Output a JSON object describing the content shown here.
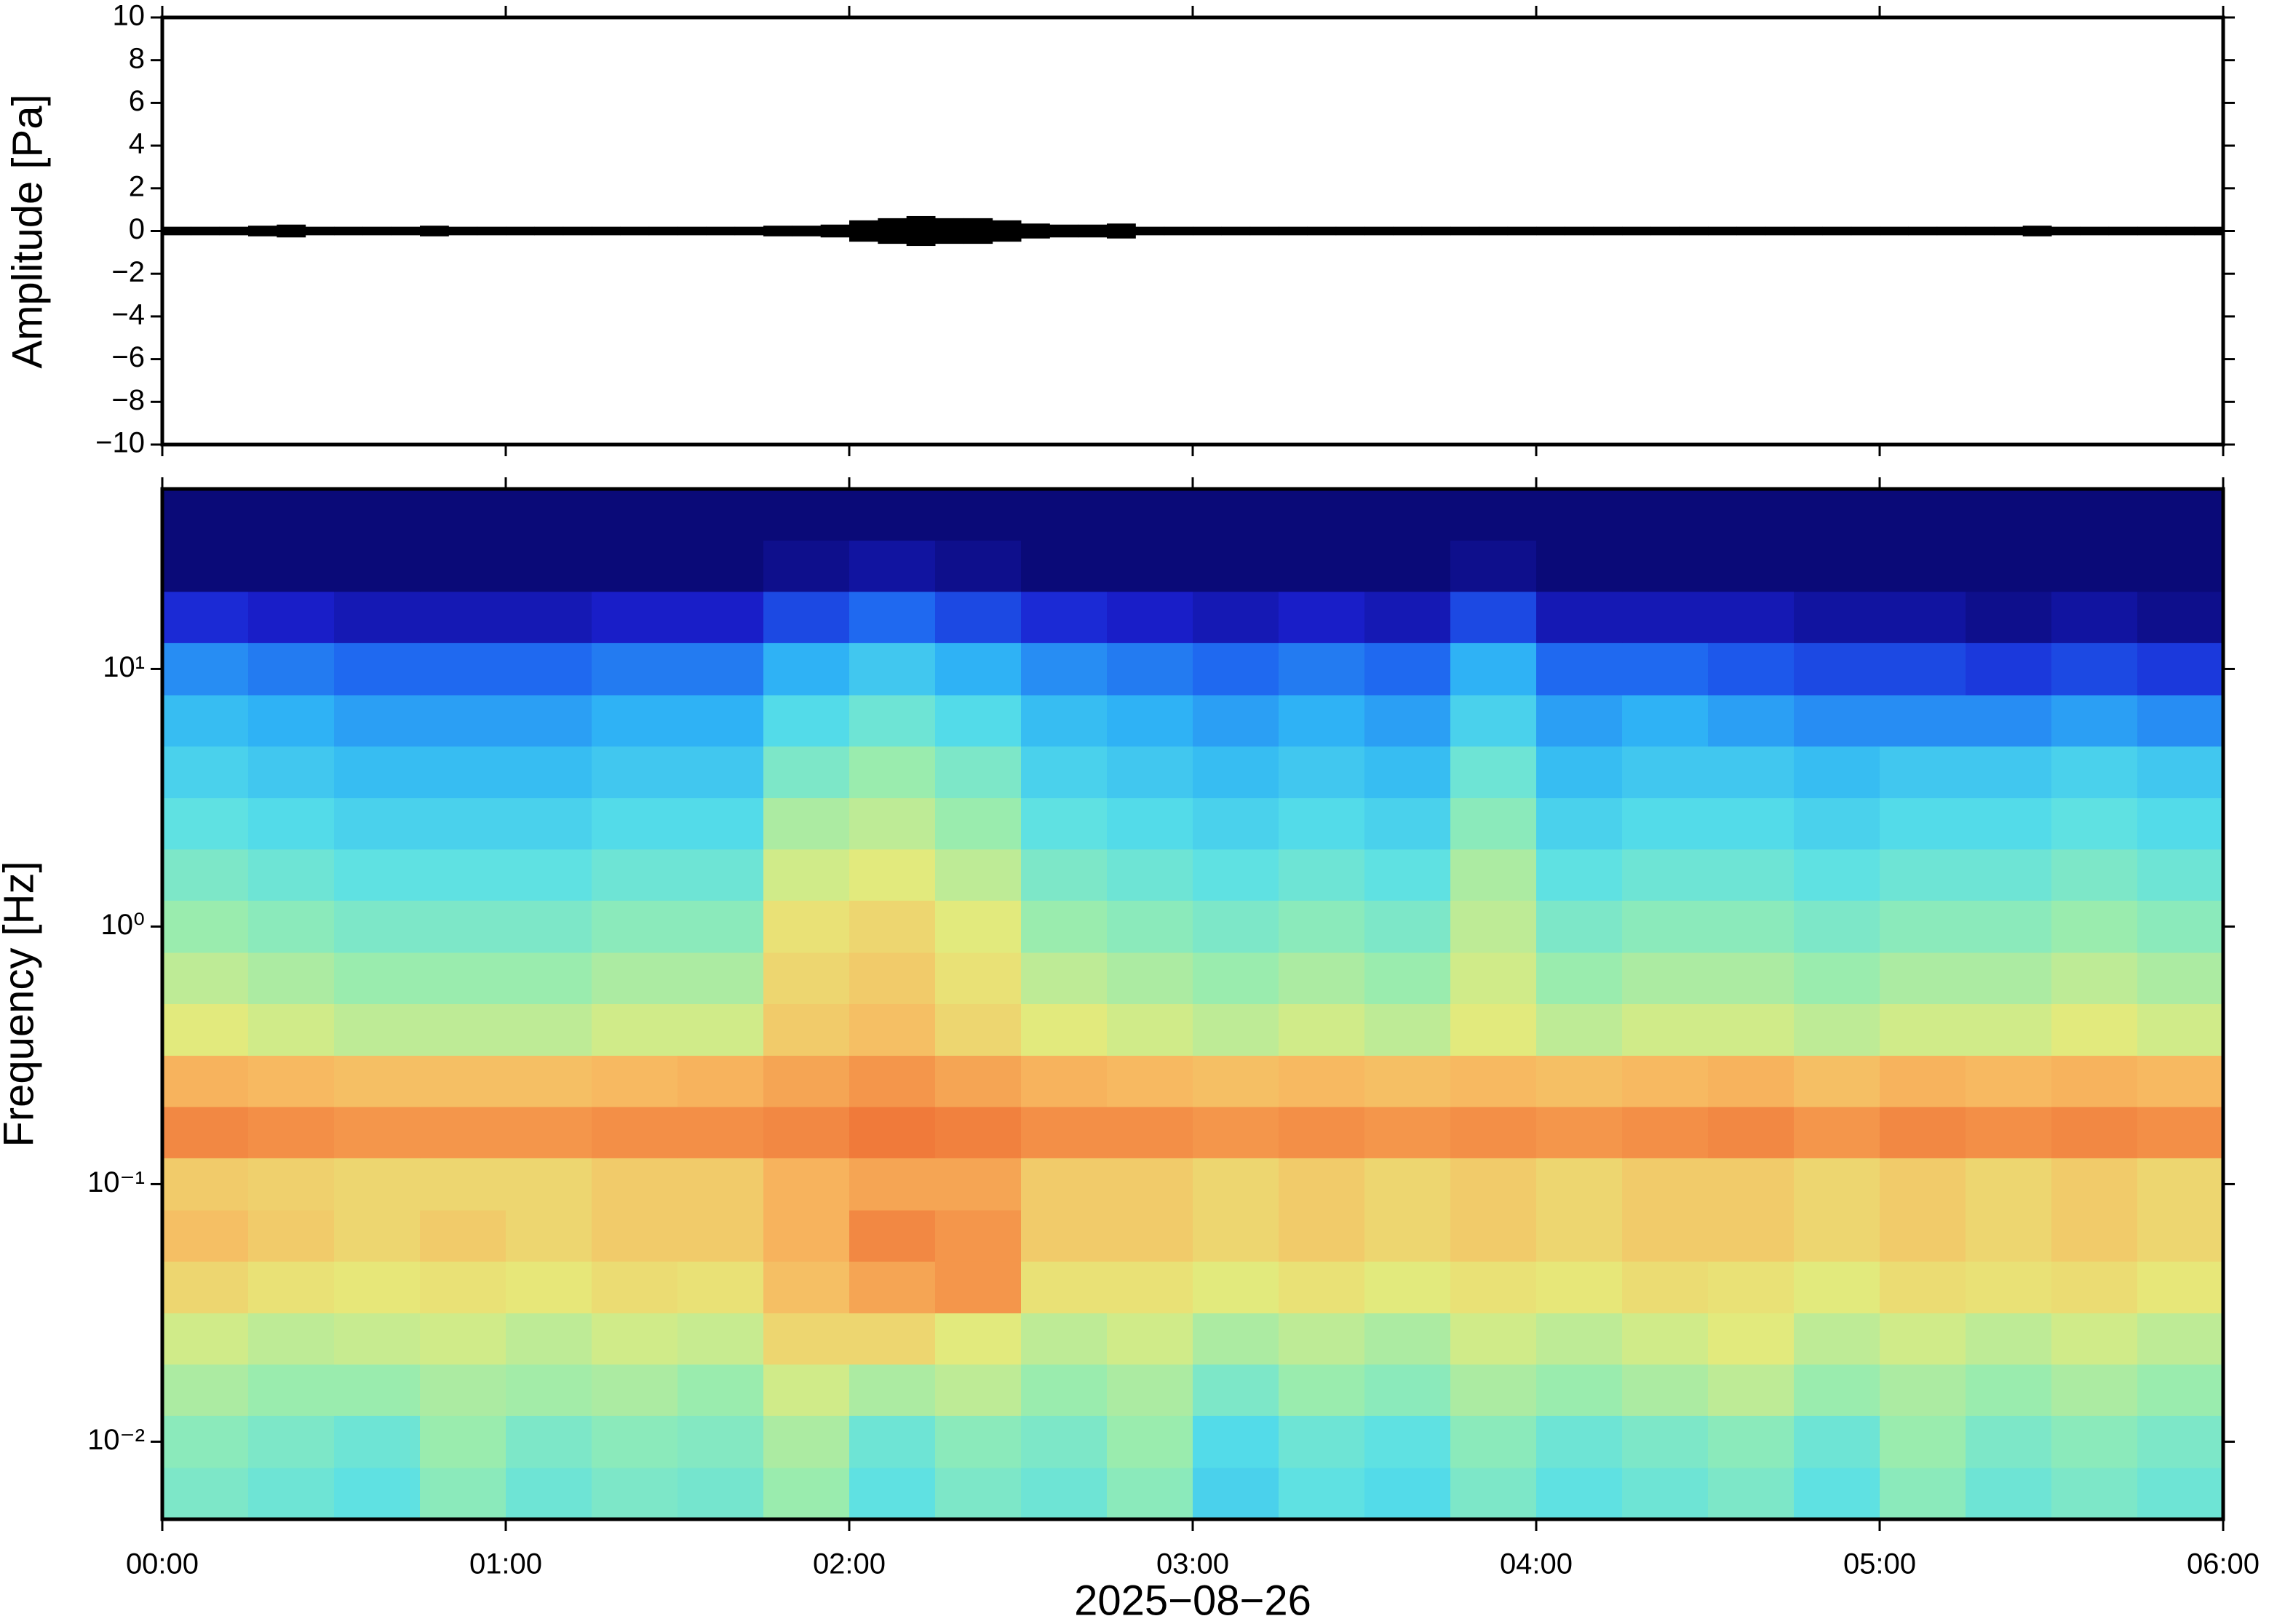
{
  "chart_data": [
    {
      "type": "envelope",
      "ylabel": "Amplitude [Pa]",
      "color": "#000000",
      "xlim": [
        0,
        360
      ],
      "ylim": [
        -10,
        10
      ],
      "yticks": [
        {
          "value": -10,
          "label": "−10"
        },
        {
          "value": -8,
          "label": "−8"
        },
        {
          "value": -6,
          "label": "−6"
        },
        {
          "value": -4,
          "label": "−4"
        },
        {
          "value": -2,
          "label": "−2"
        },
        0,
        2,
        4,
        6,
        8,
        10
      ],
      "x": [
        2.5,
        7.5,
        12.5,
        17.5,
        22.5,
        27.5,
        32.5,
        37.5,
        42.5,
        47.5,
        52.5,
        57.5,
        62.5,
        67.5,
        72.5,
        77.5,
        82.5,
        87.5,
        92.5,
        97.5,
        102.5,
        107.5,
        112.5,
        117.5,
        122.5,
        127.5,
        132.5,
        137.5,
        142.5,
        147.5,
        152.5,
        157.5,
        162.5,
        167.5,
        172.5,
        177.5,
        182.5,
        187.5,
        192.5,
        197.5,
        202.5,
        207.5,
        212.5,
        217.5,
        222.5,
        227.5,
        232.5,
        237.5,
        242.5,
        247.5,
        252.5,
        257.5,
        262.5,
        267.5,
        272.5,
        277.5,
        282.5,
        287.5,
        292.5,
        297.5,
        302.5,
        307.5,
        312.5,
        317.5,
        322.5,
        327.5,
        332.5,
        337.5,
        342.5,
        347.5,
        352.5,
        357.5
      ],
      "values": [
        0.2,
        0.2,
        0.2,
        0.25,
        0.3,
        0.2,
        0.2,
        0.2,
        0.2,
        0.25,
        0.2,
        0.2,
        0.2,
        0.2,
        0.2,
        0.2,
        0.2,
        0.2,
        0.2,
        0.2,
        0.2,
        0.25,
        0.25,
        0.3,
        0.5,
        0.6,
        0.7,
        0.6,
        0.6,
        0.5,
        0.35,
        0.3,
        0.3,
        0.35,
        0.2,
        0.2,
        0.2,
        0.2,
        0.2,
        0.2,
        0.2,
        0.2,
        0.2,
        0.2,
        0.2,
        0.2,
        0.2,
        0.2,
        0.2,
        0.2,
        0.2,
        0.2,
        0.2,
        0.2,
        0.2,
        0.2,
        0.2,
        0.2,
        0.2,
        0.2,
        0.2,
        0.2,
        0.2,
        0.2,
        0.2,
        0.25,
        0.2,
        0.2,
        0.2,
        0.2,
        0.2,
        0.2
      ]
    },
    {
      "type": "heatmap",
      "ylabel": "Frequency [Hz]",
      "xlabel": "2025−08−26",
      "log_y": true,
      "colormap": [
        "#0a0a78",
        "#1a20d0",
        "#1e64f0",
        "#2fb4f5",
        "#58e0e8",
        "#98ecb0",
        "#e6ea7a",
        "#f8b860",
        "#f07a3a"
      ],
      "xlim": [
        0,
        360
      ],
      "ylim": [
        0.005,
        50
      ],
      "xticks": [
        {
          "value": 0,
          "label": "00:00"
        },
        {
          "value": 60,
          "label": "01:00"
        },
        {
          "value": 120,
          "label": "02:00"
        },
        {
          "value": 180,
          "label": "03:00"
        },
        {
          "value": 240,
          "label": "04:00"
        },
        {
          "value": 300,
          "label": "05:00"
        },
        {
          "value": 360,
          "label": "06:00"
        }
      ],
      "yticks": [
        {
          "value": 0.01,
          "label": "10⁻²"
        },
        {
          "value": 0.1,
          "label": "10⁻¹"
        },
        {
          "value": 1,
          "label": "10⁰"
        },
        {
          "value": 10,
          "label": "10¹"
        }
      ],
      "x": [
        7.5,
        22.5,
        37.5,
        52.5,
        67.5,
        82.5,
        97.5,
        112.5,
        127.5,
        142.5,
        157.5,
        172.5,
        187.5,
        202.5,
        217.5,
        232.5,
        247.5,
        262.5,
        277.5,
        292.5,
        307.5,
        322.5,
        337.5,
        352.5
      ],
      "y": [
        0.0063,
        0.01,
        0.016,
        0.025,
        0.04,
        0.063,
        0.1,
        0.16,
        0.25,
        0.4,
        0.63,
        1,
        1.6,
        2.5,
        4,
        6.3,
        10,
        16,
        25,
        40
      ],
      "z": [
        [
          40,
          38,
          36,
          42,
          38,
          40,
          39,
          44,
          36,
          40,
          38,
          42,
          32,
          36,
          34,
          40,
          36,
          38,
          40,
          36,
          42,
          38,
          40,
          38
        ],
        [
          42,
          40,
          38,
          44,
          40,
          42,
          41,
          46,
          38,
          42,
          40,
          44,
          34,
          38,
          36,
          42,
          38,
          40,
          42,
          38,
          44,
          40,
          42,
          40
        ],
        [
          46,
          44,
          44,
          46,
          45,
          46,
          44,
          50,
          46,
          48,
          44,
          46,
          40,
          44,
          42,
          46,
          44,
          46,
          48,
          44,
          46,
          44,
          46,
          44
        ],
        [
          50,
          48,
          49,
          50,
          48,
          50,
          49,
          56,
          56,
          52,
          48,
          50,
          46,
          48,
          46,
          50,
          48,
          50,
          52,
          48,
          50,
          48,
          50,
          48
        ],
        [
          56,
          54,
          53,
          54,
          53,
          55,
          54,
          60,
          64,
          66,
          54,
          54,
          52,
          54,
          52,
          54,
          53,
          55,
          54,
          52,
          55,
          54,
          55,
          53
        ],
        [
          60,
          58,
          56,
          58,
          56,
          58,
          58,
          62,
          68,
          66,
          58,
          58,
          56,
          58,
          56,
          58,
          56,
          58,
          58,
          56,
          58,
          56,
          58,
          56
        ],
        [
          58,
          57,
          56,
          56,
          56,
          58,
          58,
          62,
          64,
          64,
          58,
          58,
          56,
          58,
          56,
          58,
          56,
          58,
          58,
          56,
          58,
          56,
          58,
          56
        ],
        [
          68,
          67,
          66,
          66,
          66,
          67,
          67,
          68,
          70,
          69,
          67,
          67,
          66,
          67,
          66,
          67,
          66,
          67,
          68,
          66,
          68,
          67,
          68,
          67
        ],
        [
          62,
          61,
          60,
          60,
          60,
          61,
          62,
          64,
          66,
          64,
          62,
          61,
          60,
          61,
          60,
          61,
          60,
          61,
          62,
          60,
          62,
          61,
          62,
          61
        ],
        [
          52,
          50,
          48,
          48,
          48,
          50,
          50,
          58,
          60,
          56,
          52,
          50,
          48,
          50,
          48,
          52,
          48,
          50,
          50,
          48,
          50,
          50,
          52,
          50
        ],
        [
          48,
          46,
          44,
          44,
          44,
          46,
          46,
          56,
          58,
          54,
          48,
          46,
          44,
          46,
          44,
          50,
          44,
          46,
          46,
          44,
          46,
          46,
          48,
          46
        ],
        [
          44,
          42,
          40,
          40,
          40,
          42,
          42,
          54,
          56,
          52,
          44,
          42,
          40,
          42,
          40,
          48,
          40,
          42,
          42,
          40,
          42,
          42,
          44,
          42
        ],
        [
          40,
          38,
          36,
          36,
          36,
          38,
          38,
          50,
          52,
          48,
          40,
          38,
          36,
          38,
          36,
          46,
          36,
          38,
          38,
          36,
          38,
          38,
          40,
          38
        ],
        [
          36,
          34,
          32,
          32,
          32,
          34,
          34,
          46,
          48,
          44,
          36,
          34,
          32,
          34,
          32,
          42,
          32,
          34,
          34,
          32,
          34,
          34,
          36,
          34
        ],
        [
          32,
          30,
          28,
          28,
          28,
          30,
          30,
          40,
          44,
          40,
          32,
          30,
          28,
          30,
          28,
          38,
          28,
          30,
          30,
          28,
          30,
          30,
          32,
          30
        ],
        [
          28,
          26,
          24,
          24,
          24,
          26,
          26,
          34,
          38,
          34,
          28,
          26,
          24,
          26,
          24,
          32,
          24,
          26,
          24,
          22,
          22,
          22,
          24,
          22
        ],
        [
          22,
          20,
          18,
          18,
          18,
          20,
          20,
          26,
          30,
          26,
          22,
          20,
          18,
          20,
          18,
          26,
          18,
          18,
          16,
          14,
          14,
          12,
          14,
          12
        ],
        [
          10,
          8,
          6,
          6,
          6,
          8,
          8,
          14,
          18,
          14,
          10,
          8,
          6,
          8,
          6,
          14,
          6,
          6,
          6,
          4,
          4,
          2,
          4,
          2
        ],
        [
          0,
          0,
          0,
          0,
          0,
          0,
          0,
          2,
          4,
          2,
          0,
          0,
          0,
          0,
          0,
          2,
          0,
          0,
          0,
          0,
          0,
          0,
          0,
          0
        ],
        [
          0,
          0,
          0,
          0,
          0,
          0,
          0,
          0,
          0,
          0,
          0,
          0,
          0,
          0,
          0,
          0,
          0,
          0,
          0,
          0,
          0,
          0,
          0,
          0
        ]
      ]
    }
  ]
}
